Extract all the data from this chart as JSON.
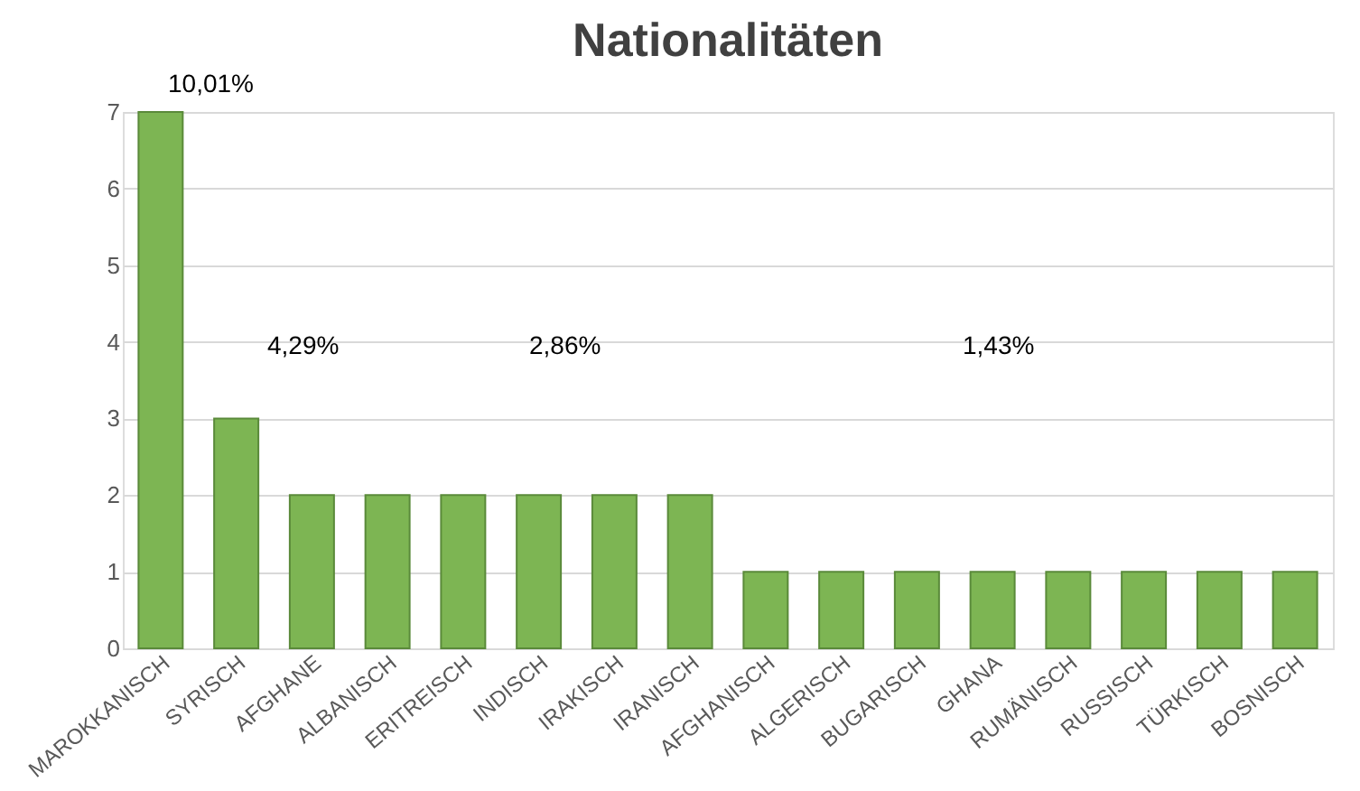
{
  "chart_data": {
    "type": "bar",
    "title": "Nationalitäten",
    "categories": [
      "MAROKKANISCH",
      "SYRISCH",
      "AFGHANE",
      "ALBANISCH",
      "ERITREISCH",
      "INDISCH",
      "IRAKISCH",
      "IRANISCH",
      "AFGHANISCH",
      "ALGERISCH",
      "BUGARISCH",
      "GHANA",
      "RUMÄNISCH",
      "RUSSISCH",
      "TÜRKISCH",
      "BOSNISCH"
    ],
    "values": [
      7,
      3,
      2,
      2,
      2,
      2,
      2,
      2,
      1,
      1,
      1,
      1,
      1,
      1,
      1,
      1
    ],
    "color": "#7db553",
    "ylim": [
      0,
      7
    ],
    "yticks": [
      0,
      1,
      2,
      3,
      4,
      5,
      6,
      7
    ],
    "grid": "y",
    "annotations": [
      "10,01%",
      "4,29%",
      "2,86%",
      "1,43%"
    ]
  }
}
